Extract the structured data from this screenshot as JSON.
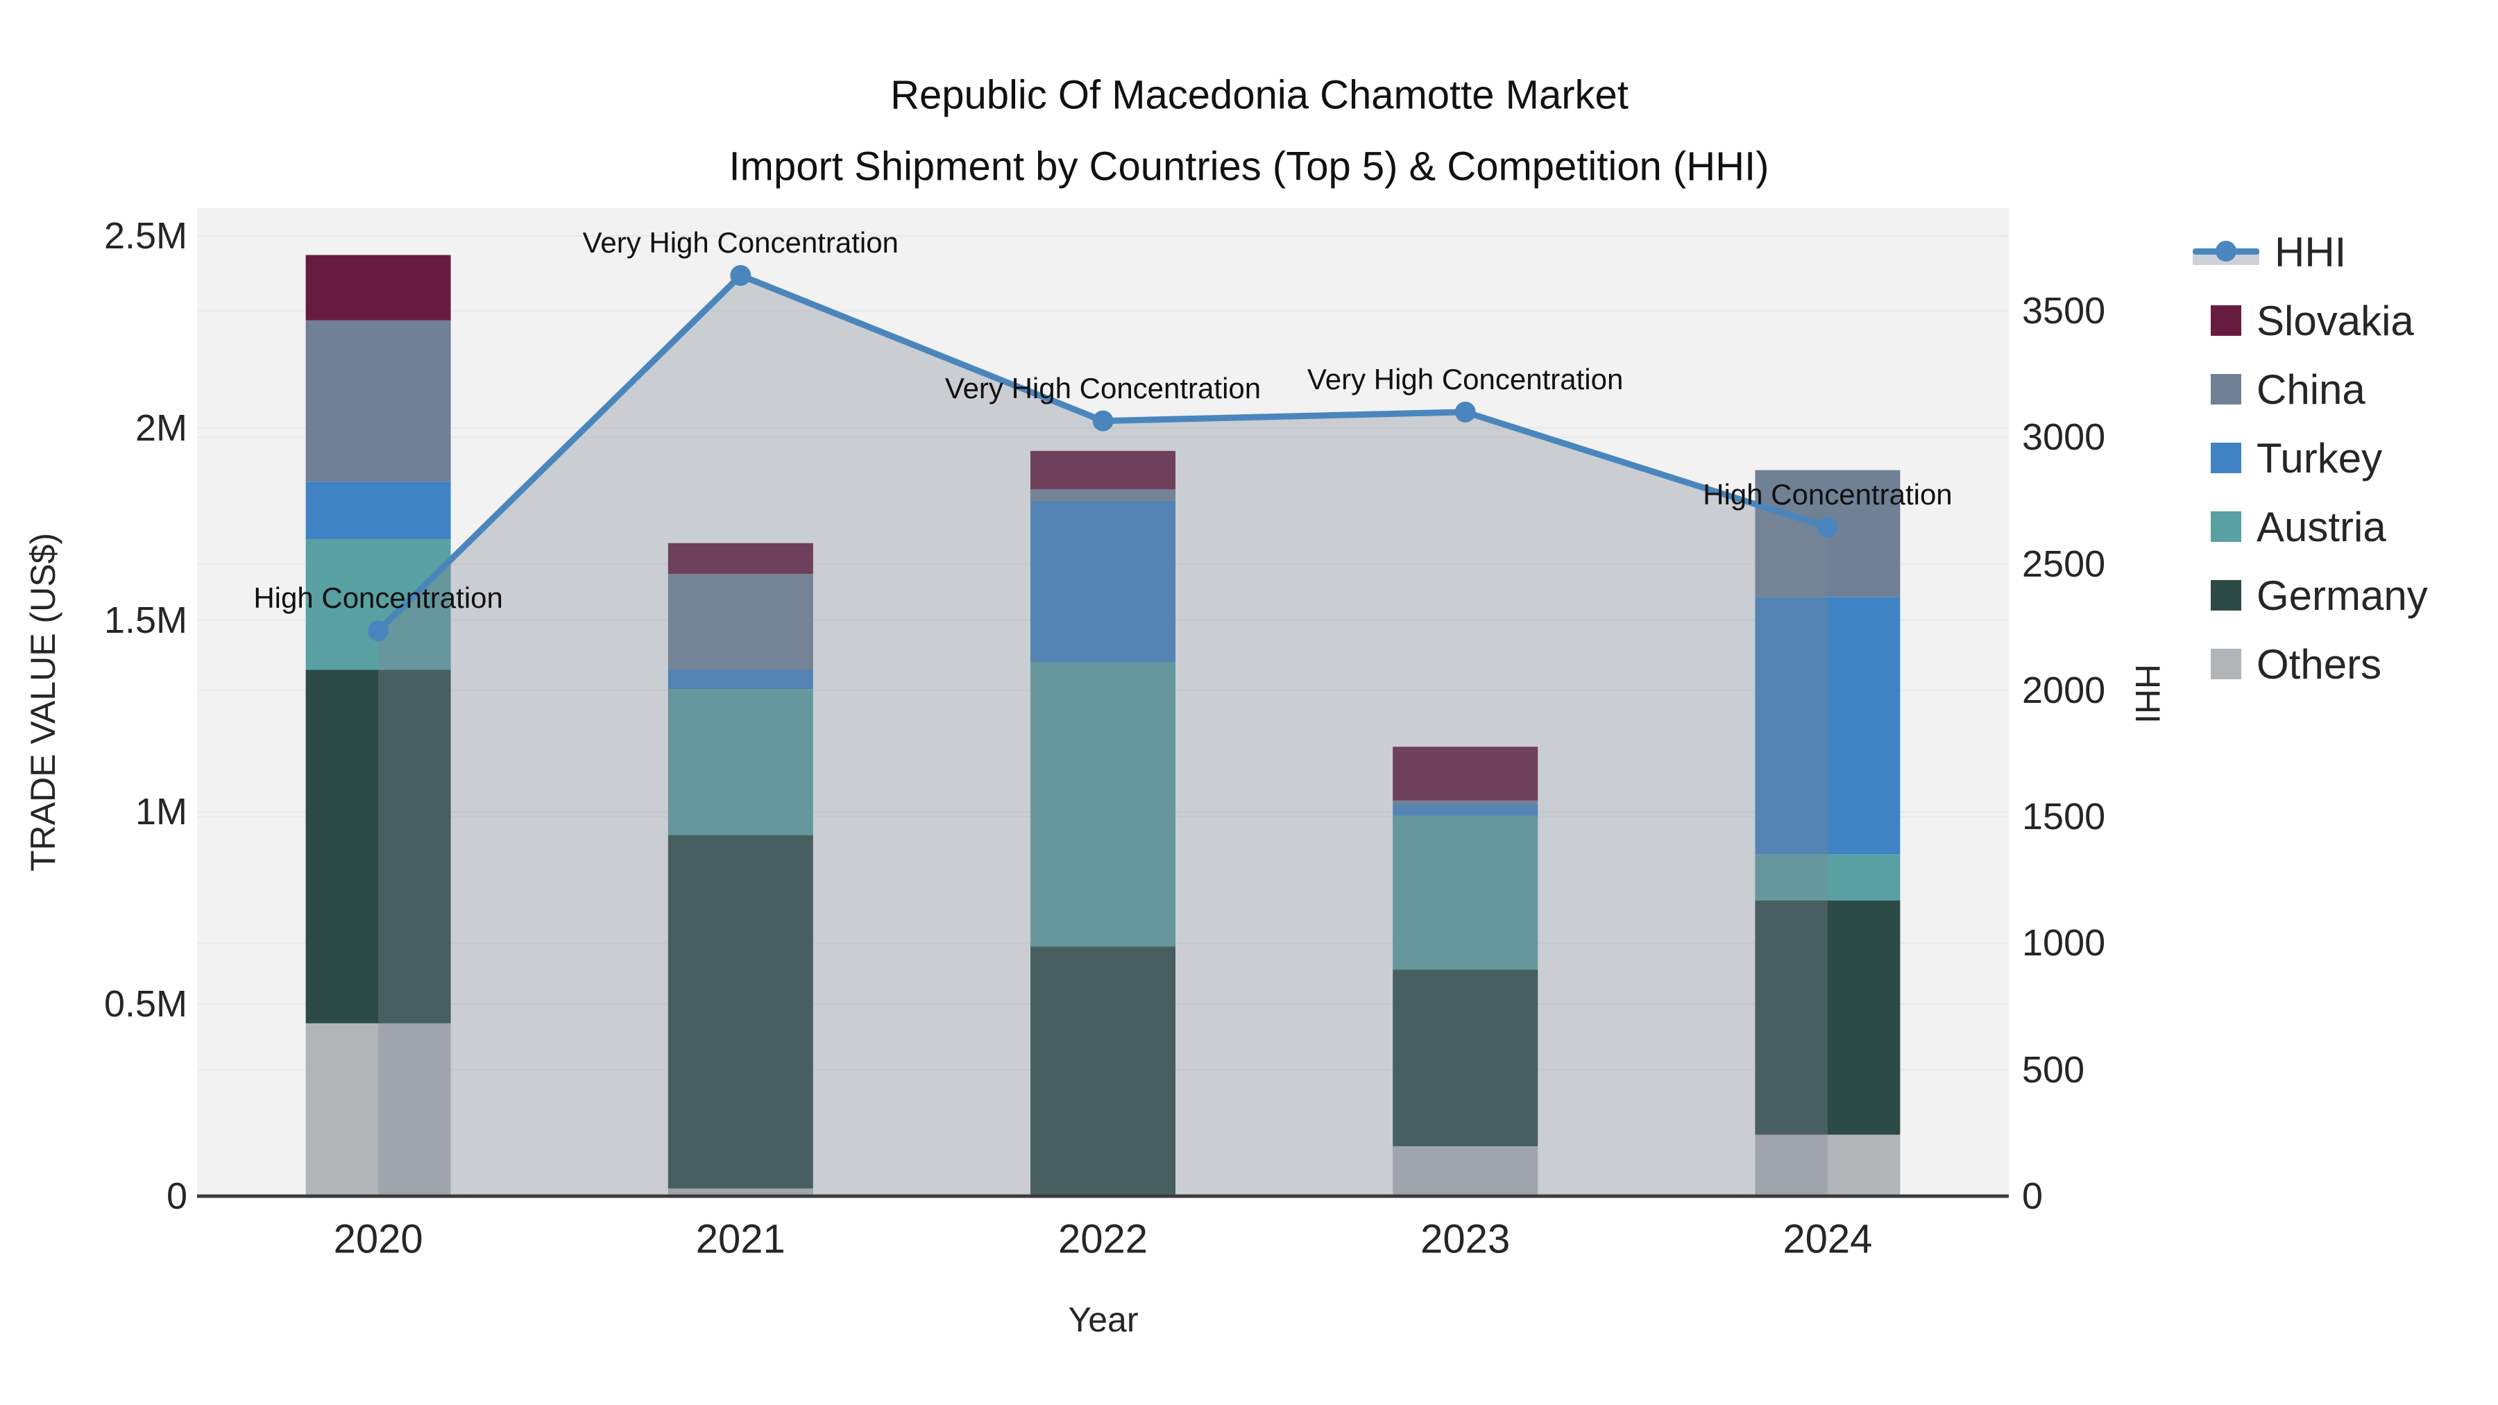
{
  "chart_data": {
    "type": "bar",
    "stacked": true,
    "title": "Republic Of Macedonia Chamotte Market",
    "subtitle": "Import Shipment by Countries (Top 5) & Competition (HHI)",
    "xlabel": "Year",
    "ylabel_left": "TRADE VALUE (US$)",
    "ylabel_right": "HHI",
    "categories": [
      "2020",
      "2021",
      "2022",
      "2023",
      "2024"
    ],
    "ylim_left": [
      0,
      2572000
    ],
    "ylim_right": [
      0,
      3906
    ],
    "yticks_left": [
      {
        "label": "0",
        "value": 0
      },
      {
        "label": "0.5M",
        "value": 500000
      },
      {
        "label": "1M",
        "value": 1000000
      },
      {
        "label": "1.5M",
        "value": 1500000
      },
      {
        "label": "2M",
        "value": 2000000
      },
      {
        "label": "2.5M",
        "value": 2500000
      }
    ],
    "yticks_right": [
      {
        "label": "0",
        "value": 0
      },
      {
        "label": "500",
        "value": 500
      },
      {
        "label": "1000",
        "value": 1000
      },
      {
        "label": "1500",
        "value": 1500
      },
      {
        "label": "2000",
        "value": 2000
      },
      {
        "label": "2500",
        "value": 2500
      },
      {
        "label": "3000",
        "value": 3000
      },
      {
        "label": "3500",
        "value": 3500
      }
    ],
    "series": [
      {
        "name": "Others",
        "color": "#b2b5b8",
        "values": [
          450000,
          20000,
          0,
          130000,
          160000
        ]
      },
      {
        "name": "Germany",
        "color": "#2c4b46",
        "values": [
          920000,
          920000,
          650000,
          460000,
          610000
        ]
      },
      {
        "name": "Austria",
        "color": "#58a0a2",
        "values": [
          340000,
          380000,
          740000,
          400000,
          120000
        ]
      },
      {
        "name": "Turkey",
        "color": "#3f83c4",
        "values": [
          150000,
          50000,
          420000,
          30000,
          670000
        ]
      },
      {
        "name": "China",
        "color": "#708196",
        "values": [
          420000,
          250000,
          30000,
          10000,
          330000
        ]
      },
      {
        "name": "Slovakia",
        "color": "#671c3f",
        "values": [
          170000,
          80000,
          100000,
          140000,
          0
        ]
      }
    ],
    "line": {
      "name": "HHI",
      "color": "#4a86bd",
      "area_fill": "rgba(125,136,146,0.34)",
      "values": [
        2235,
        3640,
        3065,
        3100,
        2645
      ],
      "annotations": [
        "High Concentration",
        "Very High Concentration",
        "Very High Concentration",
        "Very High Concentration",
        "High Concentration"
      ]
    },
    "legend": [
      "HHI",
      "Slovakia",
      "China",
      "Turkey",
      "Austria",
      "Germany",
      "Others"
    ],
    "legend_position": "right",
    "grid": true
  },
  "colors": {
    "plot_bg": "#f2f2f2",
    "grid": "#e7e7e7",
    "axis_line": "#3b3b3b",
    "text": "#262626"
  }
}
